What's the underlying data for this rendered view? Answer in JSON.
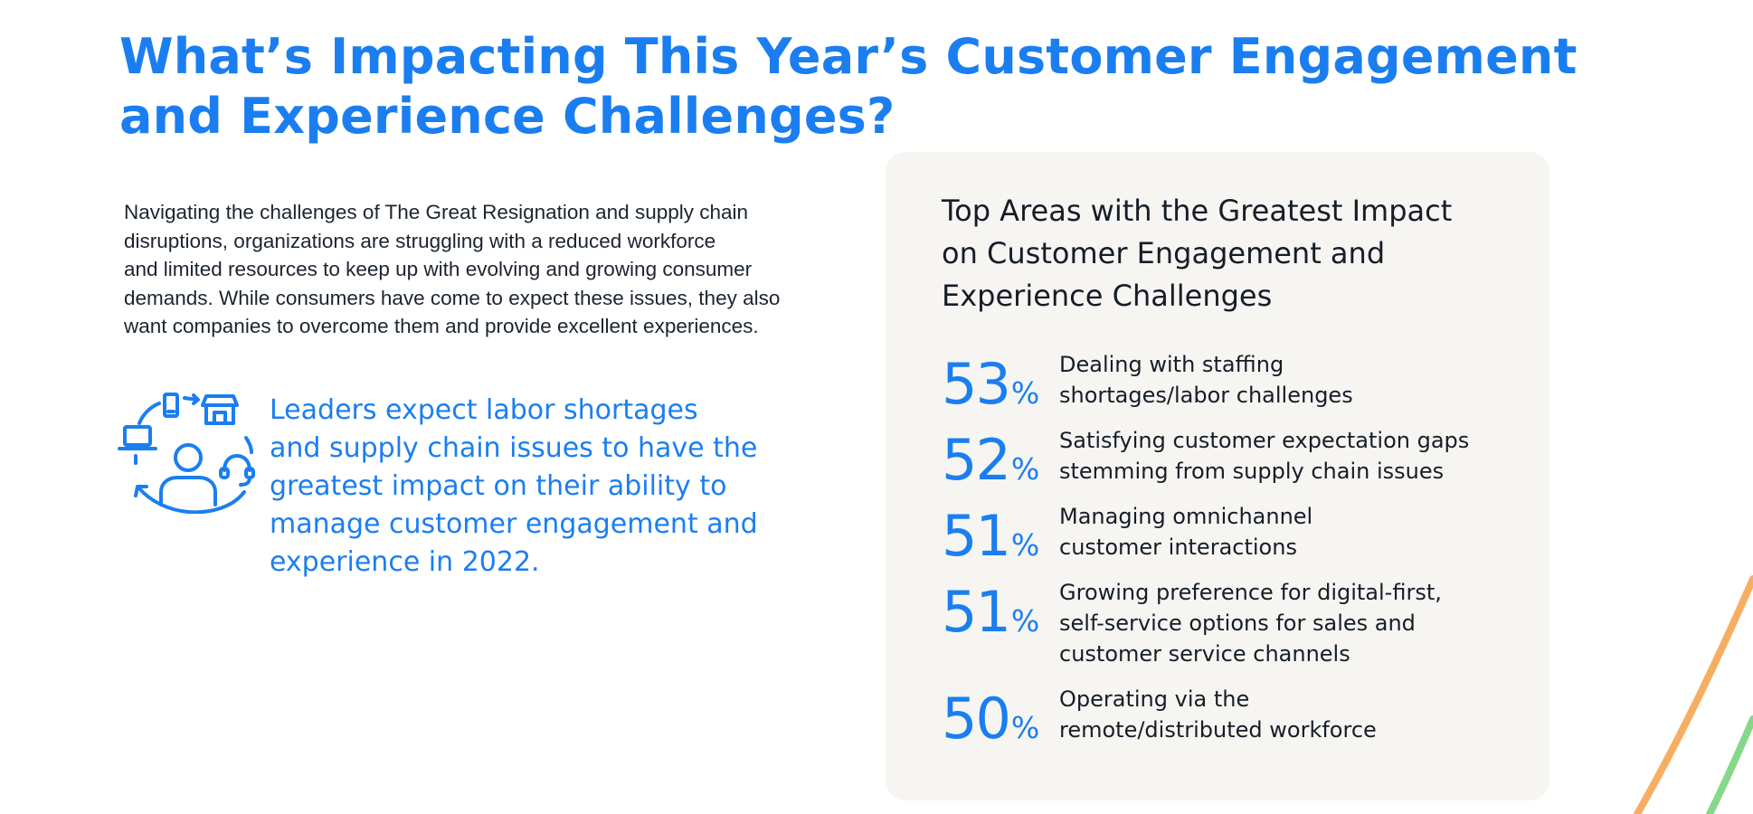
{
  "title": {
    "lines": [
      "What’s Impacting This Year’s Customer Engagement",
      "and Experience Challenges?"
    ]
  },
  "intro": {
    "lines": [
      "Navigating the challenges of The Great Resignation and supply chain",
      "disruptions, organizations are struggling with a reduced workforce",
      "and limited resources to keep up with evolving and growing consumer",
      "demands. While consumers have come to expect these issues, they also",
      "want companies to overcome them and provide excellent experiences."
    ]
  },
  "callout": {
    "icon": "customer-omnichannel-icon",
    "lines": [
      "Leaders expect labor shortages",
      "and supply chain issues to have the",
      "greatest impact on their ability to",
      "manage customer engagement and",
      "experience in 2022."
    ]
  },
  "panel": {
    "title_lines": [
      "Top Areas with the Greatest Impact",
      "on Customer Engagement and",
      "Experience Challenges"
    ],
    "stats": [
      {
        "value": "53",
        "unit": "%",
        "lines": [
          "Dealing with staffing",
          "shortages/labor challenges"
        ]
      },
      {
        "value": "52",
        "unit": "%",
        "lines": [
          "Satisfying customer expectation gaps",
          "stemming from supply chain issues"
        ]
      },
      {
        "value": "51",
        "unit": "%",
        "lines": [
          "Managing omnichannel",
          "customer interactions"
        ]
      },
      {
        "value": "51",
        "unit": "%",
        "lines": [
          "Growing preference for digital-first,",
          "self-service options for sales and",
          "customer service channels"
        ]
      },
      {
        "value": "50",
        "unit": "%",
        "lines": [
          "Operating via the",
          "remote/distributed workforce"
        ]
      }
    ]
  },
  "colors": {
    "accent_blue": "#1b7ef0",
    "panel_bg": "#f6f5f2",
    "text_dark": "#161d28",
    "deco_orange": "#f6ae62",
    "deco_green": "#86d98a"
  }
}
